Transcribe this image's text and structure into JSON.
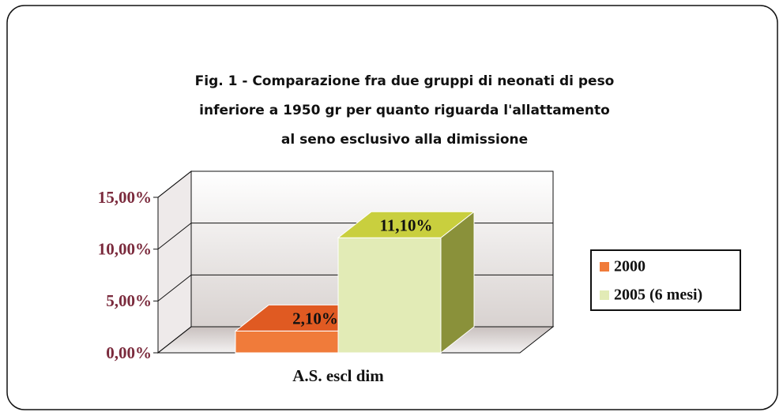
{
  "chart_data": {
    "type": "bar3d",
    "title": [
      "Fig. 1 - Comparazione fra  due gruppi di neonati di peso",
      "inferiore a   1950 gr per quanto riguarda l'allattamento",
      "al seno esclusivo alla dimissione"
    ],
    "categories": [
      "A.S. escl dim"
    ],
    "series": [
      {
        "name": "2000",
        "color": "#f07b3a",
        "values": [
          2.1
        ],
        "value_labels": [
          "2,10%"
        ]
      },
      {
        "name": "2005 (6 mesi)",
        "color": "#e2ebb6",
        "values": [
          11.1
        ],
        "value_labels": [
          "11,10%"
        ]
      }
    ],
    "ylim": [
      0,
      15
    ],
    "yticks": [
      {
        "value": 0,
        "label": "0,00%"
      },
      {
        "value": 5,
        "label": "5,00%"
      },
      {
        "value": 10,
        "label": "10,00%"
      },
      {
        "value": 15,
        "label": "15,00%"
      }
    ],
    "grid": true,
    "legend": "right"
  }
}
